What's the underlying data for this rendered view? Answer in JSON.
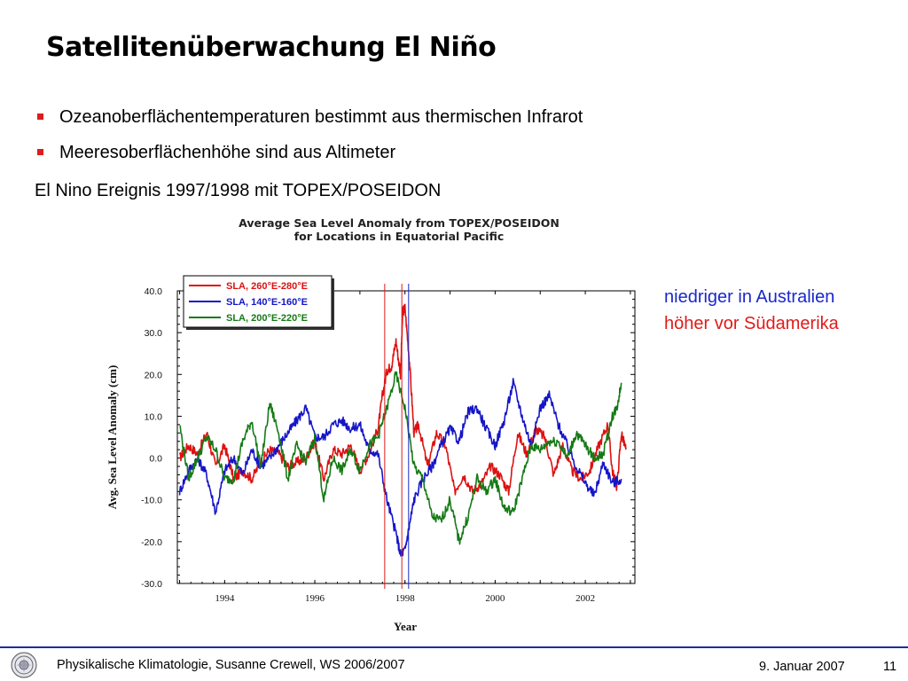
{
  "slide": {
    "title": "Satellitenüberwachung El Niño",
    "bullets": [
      "Ozeanoberflächentemperaturen bestimmt aus thermischen Infrarot",
      "Meeresoberflächenhöhe sind aus Altimeter"
    ],
    "subheading": "El Nino Ereignis 1997/1998 mit TOPEX/POSEIDON",
    "annotations": {
      "low": "niedriger in Australien",
      "high": "höher vor Südamerika"
    },
    "footer": {
      "left": "Physikalische Klimatologie, Susanne Crewell,  WS 2006/2007",
      "date": "9. Januar 2007",
      "page": "11"
    },
    "colors": {
      "bullet": "#e01b1b",
      "annotation_low": "#1a28c8",
      "annotation_high": "#e01b1b",
      "footer_rule": "#1c2f9c"
    }
  },
  "chart_data": {
    "type": "line",
    "title": "Average Sea Level Anomaly from TOPEX/POSEIDON",
    "subtitle": "for Locations in Equatorial Pacific",
    "xlabel": "Year",
    "ylabel": "Avg. Sea Level Anomaly (cm)",
    "xlim": [
      1992.95,
      2003.1
    ],
    "ylim": [
      -30,
      40
    ],
    "xticks": [
      1994,
      1996,
      1998,
      2000,
      2002
    ],
    "yticks": [
      "40.0",
      "30.0",
      "20.0",
      "10.0",
      "0.0",
      "-10.0",
      "-20.0",
      "-30.0"
    ],
    "grid": false,
    "legend_position": "top-left",
    "vlines": [
      {
        "x": 1997.55,
        "color": "#e01b1b"
      },
      {
        "x": 1997.93,
        "color": "#e01b1b"
      },
      {
        "x": 1998.08,
        "color": "#1a28c8"
      }
    ],
    "series": [
      {
        "name": "SLA, 260°E-280°E",
        "color": "#dd1111",
        "x": [
          1993.0,
          1993.2,
          1993.4,
          1993.6,
          1993.8,
          1994.0,
          1994.2,
          1994.4,
          1994.6,
          1994.8,
          1995.0,
          1995.2,
          1995.4,
          1995.6,
          1995.8,
          1996.0,
          1996.2,
          1996.4,
          1996.6,
          1996.8,
          1997.0,
          1997.2,
          1997.4,
          1997.5,
          1997.6,
          1997.7,
          1997.8,
          1997.9,
          1997.95,
          1998.0,
          1998.1,
          1998.2,
          1998.3,
          1998.5,
          1998.7,
          1998.9,
          1999.1,
          1999.3,
          1999.5,
          1999.7,
          1999.9,
          2000.1,
          2000.3,
          2000.5,
          2000.7,
          2000.9,
          2001.1,
          2001.3,
          2001.5,
          2001.7,
          2001.9,
          2002.1,
          2002.3,
          2002.5,
          2002.6,
          2002.7,
          2002.8,
          2002.9
        ],
        "values": [
          0,
          3,
          1,
          6,
          -2,
          3,
          -5,
          -3,
          -5,
          -1,
          2,
          1,
          -2,
          -1,
          0,
          4,
          -5,
          2,
          1,
          3,
          -3,
          1,
          7,
          15,
          21,
          22,
          28,
          20,
          35,
          36,
          23,
          6,
          8,
          -2,
          6,
          3,
          -8,
          -4,
          -8,
          -6,
          -2,
          -4,
          -8,
          6,
          1,
          7,
          5,
          -4,
          3,
          -3,
          -5,
          -3,
          3,
          8,
          -3,
          -7,
          6,
          2
        ]
      },
      {
        "name": "SLA, 140°E-160°E",
        "color": "#1515c8",
        "x": [
          1993.0,
          1993.2,
          1993.4,
          1993.6,
          1993.8,
          1994.0,
          1994.2,
          1994.4,
          1994.6,
          1994.8,
          1995.0,
          1995.2,
          1995.4,
          1995.6,
          1995.8,
          1996.0,
          1996.2,
          1996.4,
          1996.6,
          1996.8,
          1997.0,
          1997.2,
          1997.4,
          1997.6,
          1997.8,
          1997.9,
          1998.0,
          1998.1,
          1998.2,
          1998.4,
          1998.6,
          1998.8,
          1999.0,
          1999.2,
          1999.4,
          1999.6,
          1999.8,
          2000.0,
          2000.2,
          2000.4,
          2000.6,
          2000.8,
          2001.0,
          2001.2,
          2001.4,
          2001.6,
          2001.8,
          2002.0,
          2002.2,
          2002.4,
          2002.6,
          2002.8
        ],
        "values": [
          -8,
          -3,
          0,
          -4,
          -13,
          -3,
          0,
          -4,
          2,
          -2,
          0,
          3,
          6,
          9,
          12,
          5,
          5,
          8,
          9,
          7,
          8,
          2,
          1,
          -10,
          -18,
          -23,
          -22,
          -16,
          -10,
          -5,
          -2,
          3,
          7,
          4,
          11,
          12,
          7,
          3,
          9,
          18,
          10,
          3,
          12,
          15,
          8,
          3,
          -2,
          -6,
          -9,
          -1,
          -6,
          -5
        ]
      },
      {
        "name": "SLA, 200°E-220°E",
        "color": "#157a15",
        "x": [
          1993.0,
          1993.2,
          1993.4,
          1993.6,
          1993.8,
          1994.0,
          1994.2,
          1994.4,
          1994.6,
          1994.8,
          1995.0,
          1995.2,
          1995.4,
          1995.6,
          1995.8,
          1996.0,
          1996.2,
          1996.4,
          1996.6,
          1996.8,
          1997.0,
          1997.2,
          1997.4,
          1997.6,
          1997.8,
          1998.0,
          1998.2,
          1998.4,
          1998.6,
          1998.8,
          1999.0,
          1999.2,
          1999.4,
          1999.6,
          1999.8,
          2000.0,
          2000.2,
          2000.4,
          2000.6,
          2000.8,
          2001.0,
          2001.2,
          2001.4,
          2001.6,
          2001.8,
          2002.0,
          2002.2,
          2002.4,
          2002.6,
          2002.7,
          2002.8
        ],
        "values": [
          8,
          -5,
          0,
          5,
          2,
          -5,
          -5,
          4,
          9,
          -2,
          13,
          6,
          -5,
          3,
          -1,
          5,
          -10,
          0,
          -3,
          2,
          -3,
          3,
          5,
          12,
          20,
          12,
          -2,
          -5,
          -14,
          -15,
          -10,
          -20,
          -14,
          -5,
          -8,
          -5,
          -12,
          -13,
          -5,
          3,
          2,
          4,
          4,
          0,
          6,
          3,
          0,
          1,
          10,
          12,
          18
        ]
      }
    ]
  }
}
